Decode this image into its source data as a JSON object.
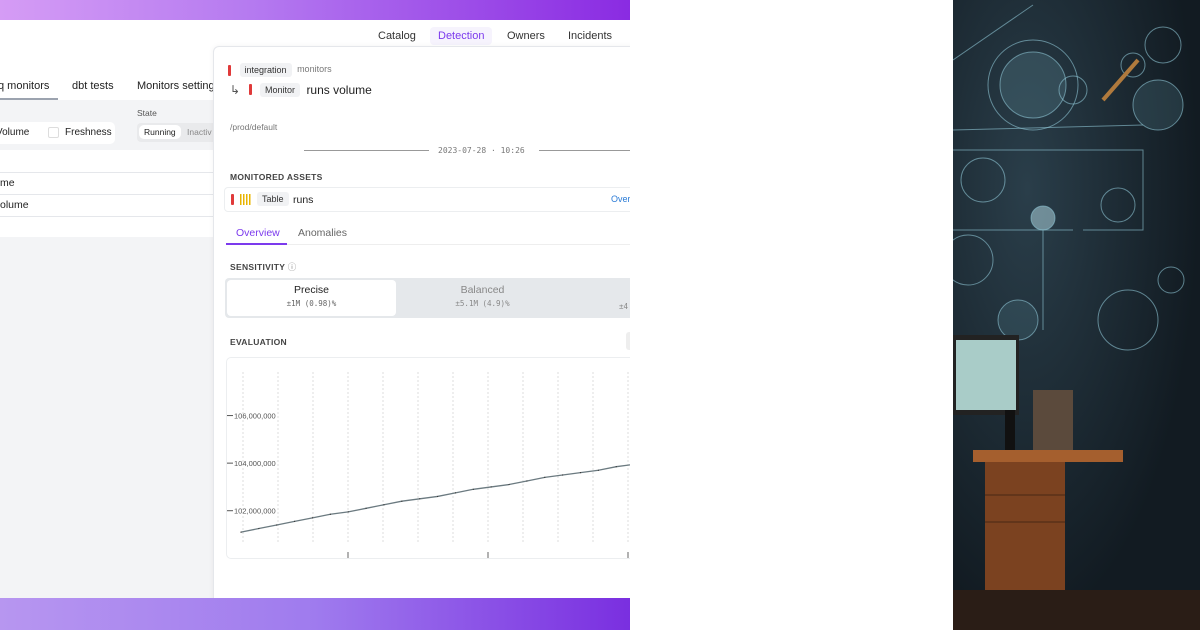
{
  "nav": {
    "items": [
      {
        "label": "Catalog"
      },
      {
        "label": "Detection",
        "active": true
      },
      {
        "label": "Owners"
      },
      {
        "label": "Incidents"
      }
    ]
  },
  "left": {
    "tabs": [
      {
        "label": "q monitors",
        "active": true
      },
      {
        "label": "dbt tests"
      },
      {
        "label": "Monitors settings"
      }
    ],
    "filters": {
      "type_options": [
        "Volume",
        "Freshness"
      ],
      "state_label": "State",
      "state_options": [
        "Running",
        "Inactiv"
      ]
    },
    "rows": [
      {
        "name": "me"
      },
      {
        "name": "olume"
      }
    ]
  },
  "detail": {
    "breadcrumb": {
      "tag": "integration",
      "name": "monitors"
    },
    "monitor": {
      "tag": "Monitor",
      "name": "runs volume",
      "arrow": "↳"
    },
    "path": "/prod/default",
    "timestamp": "2023-07-28 · 10:26",
    "assets_title": "MONITORED ASSETS",
    "asset": {
      "tag": "Table",
      "name": "runs",
      "link": "Over"
    },
    "tabs": [
      {
        "label": "Overview",
        "active": true
      },
      {
        "label": "Anomalies"
      }
    ],
    "sensitivity": {
      "title": "SENSITIVITY",
      "options": [
        {
          "label": "Precise",
          "value": "±1M (0.98)%",
          "selected": true
        },
        {
          "label": "Balanced",
          "value": "±5.1M (4.9)%"
        },
        {
          "label": "",
          "value": "±4"
        }
      ]
    },
    "evaluation_title": "EVALUATION"
  },
  "colors": {
    "accent": "#7c3aed",
    "alert": "#e03a3a",
    "band_start": "#d59cf5",
    "band_end": "#8a2be2"
  },
  "chart_data": {
    "type": "line",
    "title": "",
    "xlabel": "",
    "ylabel": "",
    "yticks": [
      "106,000,000",
      "104,000,000",
      "102,000,000"
    ],
    "ytick_values": [
      106000000,
      104000000,
      102000000
    ],
    "ylim": [
      100600000,
      108000000
    ],
    "grid": "vertical dotted",
    "values": [
      101100000,
      101250000,
      101400000,
      101550000,
      101700000,
      101850000,
      101950000,
      102100000,
      102250000,
      102400000,
      102500000,
      102600000,
      102750000,
      102900000,
      103000000,
      103100000,
      103250000,
      103400000,
      103500000,
      103600000,
      103700000,
      103850000,
      103950000,
      104050000
    ]
  }
}
